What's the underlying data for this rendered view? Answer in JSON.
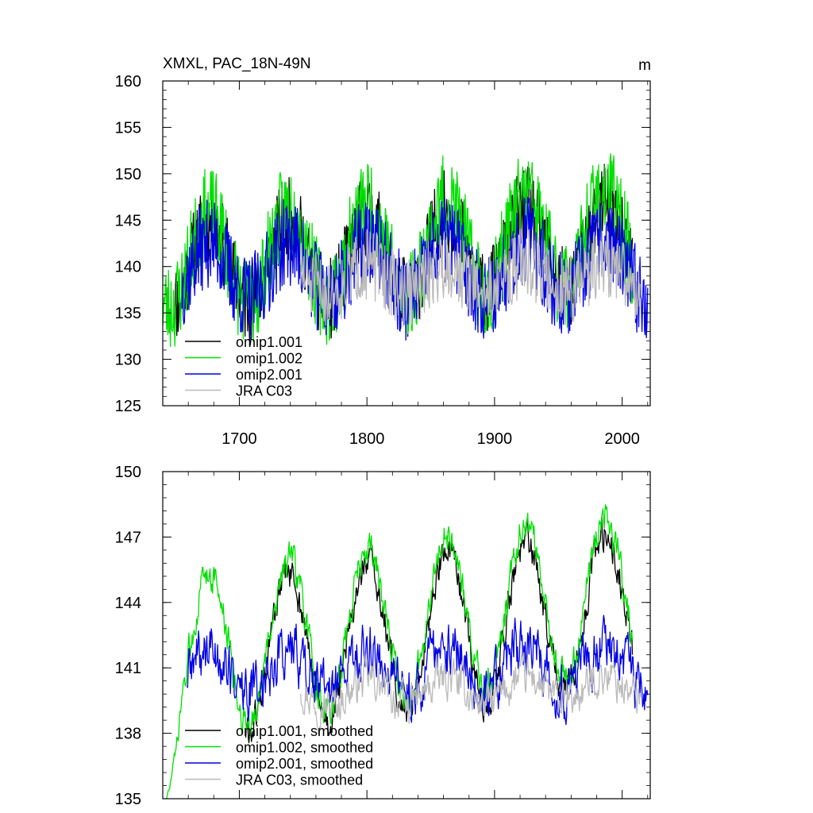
{
  "chart_data": [
    {
      "type": "line",
      "title": "XMXL, PAC_18N-49N",
      "units": "m",
      "xlim": [
        1640,
        2022
      ],
      "ylim": [
        125,
        160
      ],
      "xticks": [
        "1700",
        "1800",
        "1900",
        "2000"
      ],
      "yticks": [
        "125",
        "130",
        "135",
        "140",
        "145",
        "150",
        "155",
        "160"
      ],
      "legend_position": "bottom-left",
      "series": [
        {
          "name": "omip1.001",
          "color": "#000000",
          "start": 1648,
          "end": 2008,
          "base": 140,
          "trend": 2.5,
          "amp": 4.5,
          "spread": 4.5,
          "seed": 11
        },
        {
          "name": "omip1.002",
          "color": "#00e000",
          "start": 1640,
          "end": 2008,
          "base": 140.5,
          "trend": 3.0,
          "amp": 5.0,
          "spread": 5.0,
          "seed": 23
        },
        {
          "name": "omip2.001",
          "color": "#0000e6",
          "start": 1655,
          "end": 2020,
          "base": 139.5,
          "trend": 0.5,
          "amp": 3.0,
          "spread": 4.8,
          "seed": 37
        },
        {
          "name": "JRA C03",
          "color": "#bbbbbb",
          "start": 1748,
          "end": 2014,
          "base": 138.5,
          "trend": 0.5,
          "amp": 1.5,
          "spread": 3.8,
          "seed": 51
        }
      ]
    },
    {
      "type": "line",
      "title": "",
      "xlim": [
        1640,
        2022
      ],
      "ylim": [
        135,
        150
      ],
      "xticks": [],
      "yticks": [
        "135",
        "138",
        "141",
        "144",
        "147",
        "150"
      ],
      "legend_position": "bottom-left",
      "series": [
        {
          "name": "omip1.001, smoothed",
          "color": "#000000",
          "start": 1705,
          "end": 2008,
          "base": 141,
          "trend": 3.0,
          "amp": 3.5,
          "spread": 0.8,
          "seed": 61
        },
        {
          "name": "omip1.002, smoothed",
          "color": "#00e000",
          "start": 1643,
          "end": 2008,
          "base": 141.5,
          "trend": 3.2,
          "amp": 3.6,
          "spread": 0.8,
          "seed": 73
        },
        {
          "name": "omip2.001, smoothed",
          "color": "#0000e6",
          "start": 1659,
          "end": 2020,
          "base": 140.8,
          "trend": 0.3,
          "amp": 1.0,
          "spread": 1.3,
          "seed": 89
        },
        {
          "name": "JRA C03, smoothed",
          "color": "#bbbbbb",
          "start": 1748,
          "end": 2014,
          "base": 139.7,
          "trend": 0.4,
          "amp": 0.6,
          "spread": 0.9,
          "seed": 97
        }
      ]
    }
  ]
}
